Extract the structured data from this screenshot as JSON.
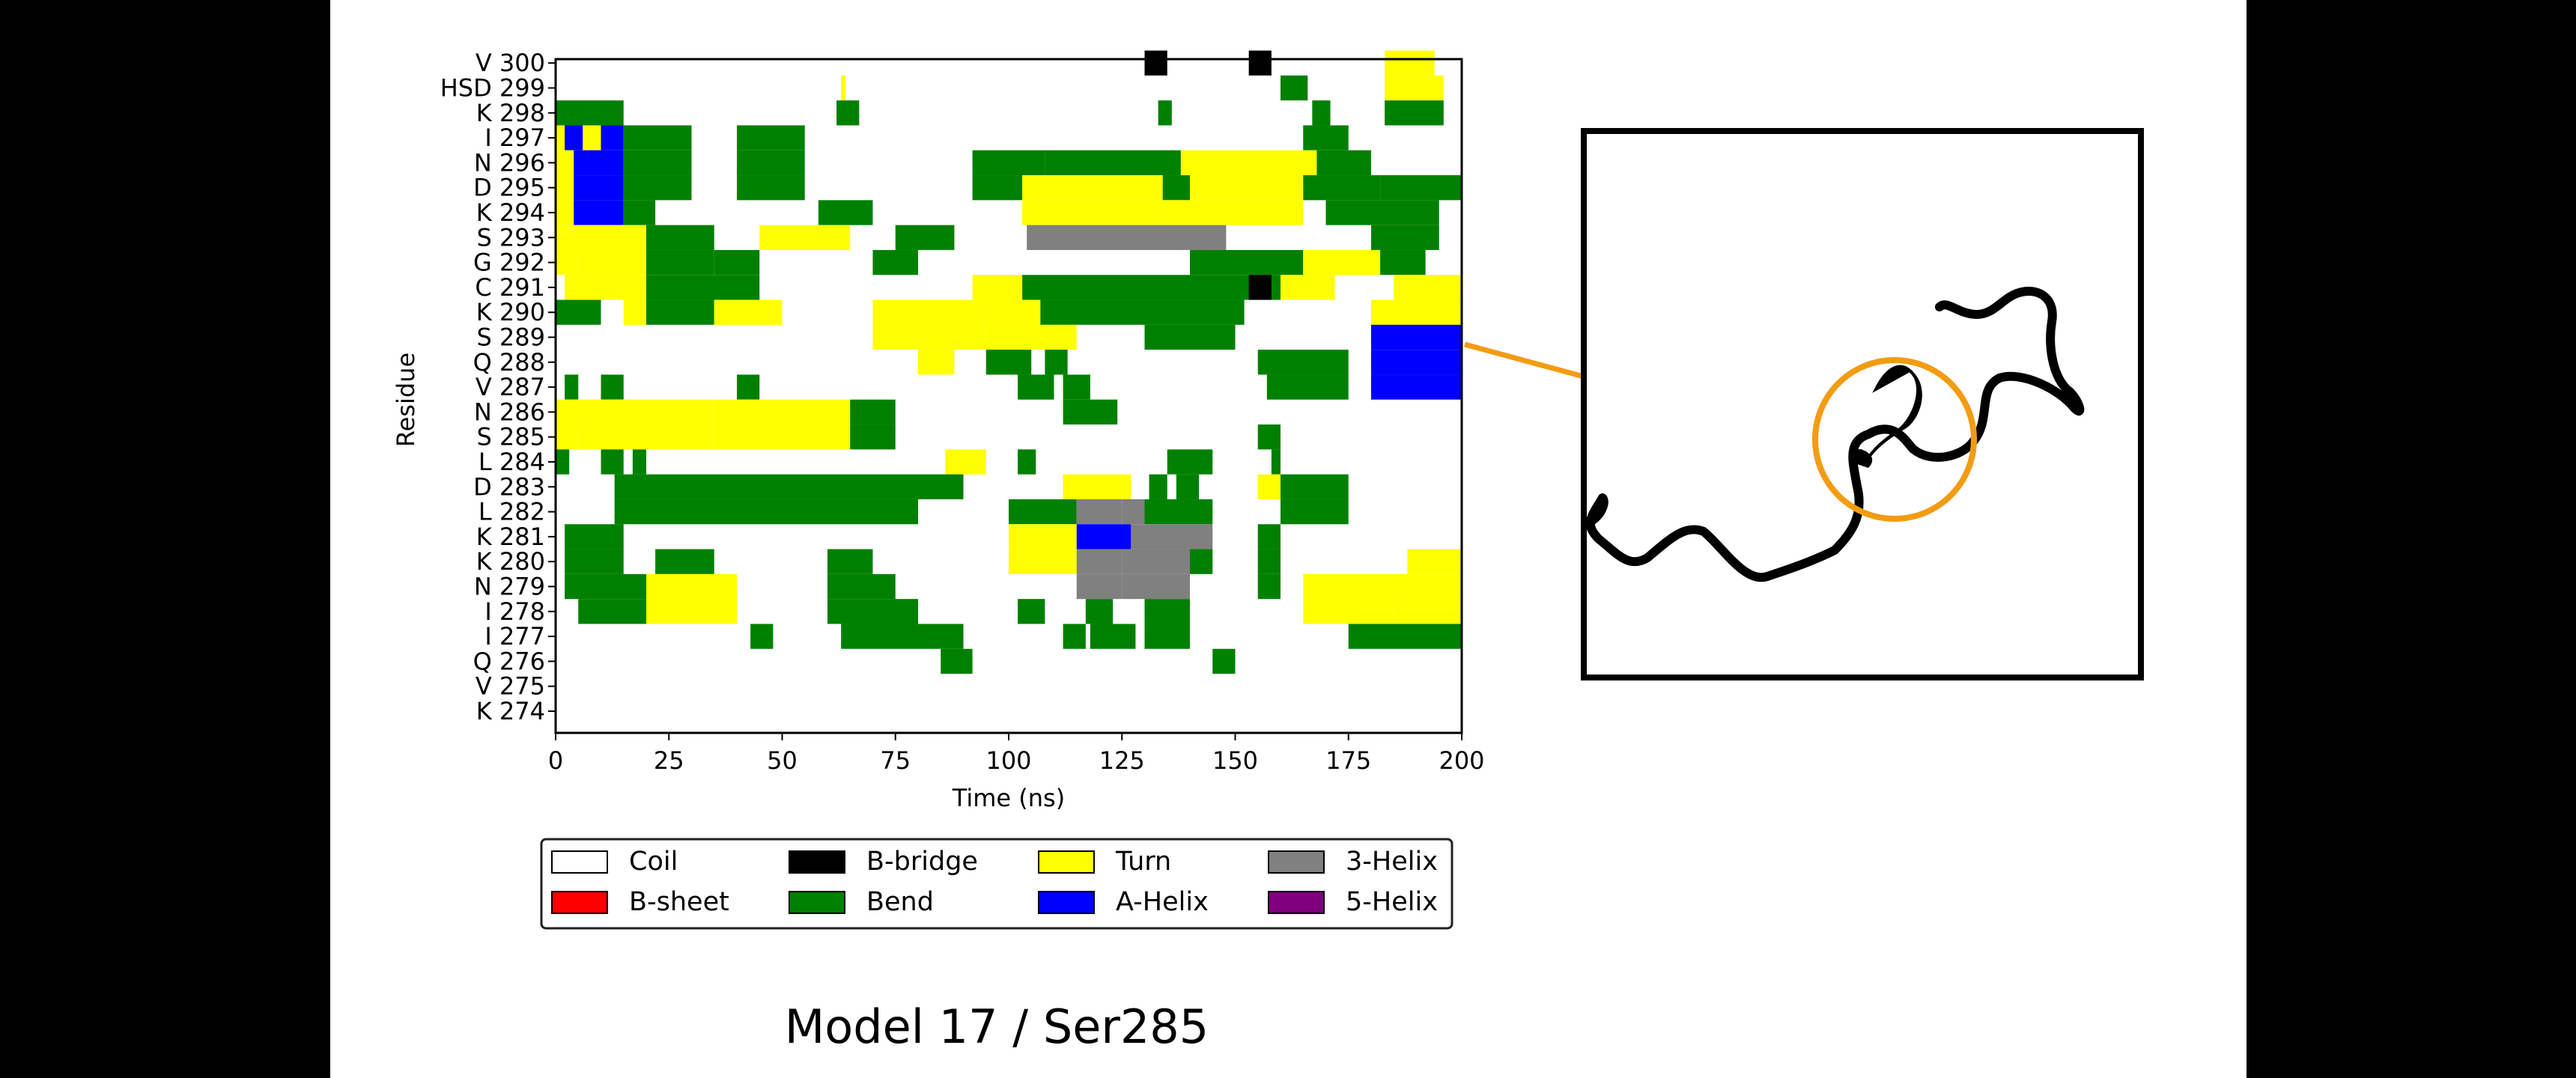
{
  "chart_data": {
    "type": "heatmap",
    "xlabel": "Time (ns)",
    "ylabel": "Residue",
    "xlim": [
      0,
      200
    ],
    "xticks": [
      0,
      25,
      50,
      75,
      100,
      125,
      150,
      175,
      200
    ],
    "residues": [
      "K 274",
      "V 275",
      "Q 276",
      "I 277",
      "I 278",
      "N 279",
      "K 280",
      "K 281",
      "L 282",
      "D 283",
      "L 284",
      "S 285",
      "N 286",
      "V 287",
      "Q 288",
      "S 289",
      "K 290",
      "C 291",
      "G 292",
      "S 293",
      "K 294",
      "D 295",
      "N 296",
      "I 297",
      "K 298",
      "HSD 299",
      "V 300"
    ],
    "states": [
      {
        "name": "Coil",
        "color": "#ffffff"
      },
      {
        "name": "B-sheet",
        "color": "#ff0000"
      },
      {
        "name": "B-bridge",
        "color": "#000000"
      },
      {
        "name": "Bend",
        "color": "#008000"
      },
      {
        "name": "Turn",
        "color": "#ffff00"
      },
      {
        "name": "A-Helix",
        "color": "#0000ff"
      },
      {
        "name": "3-Helix",
        "color": "#808080"
      },
      {
        "name": "5-Helix",
        "color": "#800080"
      }
    ],
    "segments": [
      {
        "residue": "V 300",
        "blocks": [
          [
            130,
            135,
            "B-bridge"
          ],
          [
            153,
            158,
            "B-bridge"
          ],
          [
            183,
            194,
            "Turn"
          ]
        ]
      },
      {
        "residue": "HSD 299",
        "blocks": [
          [
            63,
            64,
            "Turn"
          ],
          [
            160,
            166,
            "Bend"
          ],
          [
            183,
            196,
            "Turn"
          ]
        ]
      },
      {
        "residue": "K 298",
        "blocks": [
          [
            0,
            15,
            "Bend"
          ],
          [
            62,
            67,
            "Bend"
          ],
          [
            133,
            136,
            "Bend"
          ],
          [
            167,
            171,
            "Bend"
          ],
          [
            183,
            196,
            "Bend"
          ]
        ]
      },
      {
        "residue": "I 297",
        "blocks": [
          [
            0,
            2,
            "Turn"
          ],
          [
            2,
            6,
            "A-Helix"
          ],
          [
            6,
            10,
            "Turn"
          ],
          [
            10,
            15,
            "A-Helix"
          ],
          [
            15,
            30,
            "Bend"
          ],
          [
            40,
            55,
            "Bend"
          ],
          [
            165,
            175,
            "Bend"
          ]
        ]
      },
      {
        "residue": "N 296",
        "blocks": [
          [
            0,
            4,
            "Turn"
          ],
          [
            4,
            10,
            "A-Helix"
          ],
          [
            10,
            15,
            "A-Helix"
          ],
          [
            15,
            30,
            "Bend"
          ],
          [
            40,
            55,
            "Bend"
          ],
          [
            92,
            108,
            "Bend"
          ],
          [
            108,
            138,
            "Bend"
          ],
          [
            138,
            168,
            "Turn"
          ],
          [
            168,
            180,
            "Bend"
          ]
        ]
      },
      {
        "residue": "D 295",
        "blocks": [
          [
            0,
            4,
            "Turn"
          ],
          [
            4,
            10,
            "A-Helix"
          ],
          [
            10,
            15,
            "A-Helix"
          ],
          [
            15,
            30,
            "Bend"
          ],
          [
            40,
            55,
            "Bend"
          ],
          [
            92,
            103,
            "Bend"
          ],
          [
            103,
            134,
            "Turn"
          ],
          [
            134,
            140,
            "Bend"
          ],
          [
            140,
            165,
            "Turn"
          ],
          [
            165,
            182,
            "Bend"
          ],
          [
            182,
            200,
            "Bend"
          ]
        ]
      },
      {
        "residue": "K 294",
        "blocks": [
          [
            0,
            4,
            "Turn"
          ],
          [
            4,
            10,
            "A-Helix"
          ],
          [
            10,
            15,
            "A-Helix"
          ],
          [
            15,
            22,
            "Bend"
          ],
          [
            58,
            70,
            "Bend"
          ],
          [
            103,
            134,
            "Turn"
          ],
          [
            134,
            165,
            "Turn"
          ],
          [
            170,
            195,
            "Bend"
          ]
        ]
      },
      {
        "residue": "S 293",
        "blocks": [
          [
            0,
            20,
            "Turn"
          ],
          [
            20,
            35,
            "Bend"
          ],
          [
            45,
            65,
            "Turn"
          ],
          [
            75,
            88,
            "Bend"
          ],
          [
            104,
            120,
            "3-Helix"
          ],
          [
            120,
            148,
            "3-Helix"
          ],
          [
            180,
            195,
            "Bend"
          ]
        ]
      },
      {
        "residue": "G 292",
        "blocks": [
          [
            0,
            5,
            "Turn"
          ],
          [
            5,
            20,
            "Turn"
          ],
          [
            20,
            35,
            "Bend"
          ],
          [
            35,
            45,
            "Bend"
          ],
          [
            70,
            80,
            "Bend"
          ],
          [
            140,
            165,
            "Bend"
          ],
          [
            165,
            182,
            "Turn"
          ],
          [
            182,
            192,
            "Bend"
          ]
        ]
      },
      {
        "residue": "C 291",
        "blocks": [
          [
            2,
            10,
            "Turn"
          ],
          [
            10,
            20,
            "Turn"
          ],
          [
            20,
            45,
            "Bend"
          ],
          [
            92,
            103,
            "Turn"
          ],
          [
            103,
            140,
            "Bend"
          ],
          [
            140,
            160,
            "Bend"
          ],
          [
            153,
            158,
            "B-bridge"
          ],
          [
            160,
            172,
            "Turn"
          ],
          [
            185,
            200,
            "Turn"
          ]
        ]
      },
      {
        "residue": "K 290",
        "blocks": [
          [
            0,
            10,
            "Bend"
          ],
          [
            15,
            20,
            "Turn"
          ],
          [
            20,
            35,
            "Bend"
          ],
          [
            35,
            50,
            "Turn"
          ],
          [
            70,
            95,
            "Turn"
          ],
          [
            95,
            107,
            "Turn"
          ],
          [
            107,
            152,
            "Bend"
          ],
          [
            180,
            200,
            "Turn"
          ]
        ]
      },
      {
        "residue": "S 289",
        "blocks": [
          [
            70,
            80,
            "Turn"
          ],
          [
            80,
            95,
            "Turn"
          ],
          [
            95,
            115,
            "Turn"
          ],
          [
            130,
            150,
            "Bend"
          ],
          [
            180,
            200,
            "A-Helix"
          ]
        ]
      },
      {
        "residue": "Q 288",
        "blocks": [
          [
            80,
            88,
            "Turn"
          ],
          [
            95,
            105,
            "Bend"
          ],
          [
            108,
            113,
            "Bend"
          ],
          [
            155,
            175,
            "Bend"
          ],
          [
            180,
            200,
            "A-Helix"
          ]
        ]
      },
      {
        "residue": "V 287",
        "blocks": [
          [
            2,
            5,
            "Bend"
          ],
          [
            10,
            15,
            "Bend"
          ],
          [
            40,
            45,
            "Bend"
          ],
          [
            102,
            110,
            "Bend"
          ],
          [
            112,
            118,
            "Bend"
          ],
          [
            157,
            175,
            "Bend"
          ],
          [
            180,
            200,
            "A-Helix"
          ]
        ]
      },
      {
        "residue": "N 286",
        "blocks": [
          [
            0,
            10,
            "Turn"
          ],
          [
            10,
            20,
            "Turn"
          ],
          [
            20,
            35,
            "Turn"
          ],
          [
            35,
            65,
            "Turn"
          ],
          [
            65,
            75,
            "Bend"
          ],
          [
            112,
            124,
            "Bend"
          ]
        ]
      },
      {
        "residue": "S 285",
        "blocks": [
          [
            0,
            5,
            "Turn"
          ],
          [
            5,
            20,
            "Turn"
          ],
          [
            20,
            35,
            "Turn"
          ],
          [
            35,
            65,
            "Turn"
          ],
          [
            65,
            75,
            "Bend"
          ],
          [
            155,
            160,
            "Bend"
          ]
        ]
      },
      {
        "residue": "L 284",
        "blocks": [
          [
            0,
            3,
            "Bend"
          ],
          [
            10,
            15,
            "Bend"
          ],
          [
            17,
            20,
            "Bend"
          ],
          [
            86,
            95,
            "Turn"
          ],
          [
            102,
            106,
            "Bend"
          ],
          [
            135,
            145,
            "Bend"
          ],
          [
            158,
            160,
            "Bend"
          ]
        ]
      },
      {
        "residue": "D 283",
        "blocks": [
          [
            13,
            20,
            "Bend"
          ],
          [
            20,
            60,
            "Bend"
          ],
          [
            60,
            90,
            "Bend"
          ],
          [
            112,
            127,
            "Turn"
          ],
          [
            131,
            135,
            "Bend"
          ],
          [
            137,
            142,
            "Bend"
          ],
          [
            155,
            160,
            "Turn"
          ],
          [
            160,
            175,
            "Bend"
          ]
        ]
      },
      {
        "residue": "L 282",
        "blocks": [
          [
            13,
            20,
            "Bend"
          ],
          [
            20,
            60,
            "Bend"
          ],
          [
            60,
            80,
            "Bend"
          ],
          [
            100,
            115,
            "Bend"
          ],
          [
            115,
            125,
            "3-Helix"
          ],
          [
            125,
            130,
            "3-Helix"
          ],
          [
            130,
            145,
            "Bend"
          ],
          [
            160,
            175,
            "Bend"
          ]
        ]
      },
      {
        "residue": "K 281",
        "blocks": [
          [
            2,
            10,
            "Bend"
          ],
          [
            10,
            15,
            "Bend"
          ],
          [
            100,
            115,
            "Turn"
          ],
          [
            115,
            127,
            "A-Helix"
          ],
          [
            127,
            130,
            "3-Helix"
          ],
          [
            130,
            145,
            "3-Helix"
          ],
          [
            155,
            160,
            "Bend"
          ]
        ]
      },
      {
        "residue": "K 280",
        "blocks": [
          [
            2,
            10,
            "Bend"
          ],
          [
            10,
            15,
            "Bend"
          ],
          [
            22,
            35,
            "Bend"
          ],
          [
            60,
            70,
            "Bend"
          ],
          [
            100,
            115,
            "Turn"
          ],
          [
            115,
            125,
            "3-Helix"
          ],
          [
            125,
            140,
            "3-Helix"
          ],
          [
            140,
            145,
            "Bend"
          ],
          [
            155,
            160,
            "Bend"
          ],
          [
            188,
            200,
            "Turn"
          ]
        ]
      },
      {
        "residue": "N 279",
        "blocks": [
          [
            2,
            10,
            "Bend"
          ],
          [
            10,
            20,
            "Bend"
          ],
          [
            20,
            40,
            "Turn"
          ],
          [
            60,
            75,
            "Bend"
          ],
          [
            115,
            125,
            "3-Helix"
          ],
          [
            125,
            140,
            "3-Helix"
          ],
          [
            155,
            160,
            "Bend"
          ],
          [
            165,
            180,
            "Turn"
          ],
          [
            180,
            200,
            "Turn"
          ]
        ]
      },
      {
        "residue": "I 278",
        "blocks": [
          [
            5,
            20,
            "Bend"
          ],
          [
            20,
            40,
            "Turn"
          ],
          [
            60,
            80,
            "Bend"
          ],
          [
            102,
            108,
            "Bend"
          ],
          [
            117,
            123,
            "Bend"
          ],
          [
            130,
            140,
            "Bend"
          ],
          [
            165,
            185,
            "Turn"
          ],
          [
            185,
            200,
            "Turn"
          ]
        ]
      },
      {
        "residue": "I 277",
        "blocks": [
          [
            43,
            48,
            "Bend"
          ],
          [
            63,
            80,
            "Bend"
          ],
          [
            80,
            90,
            "Bend"
          ],
          [
            112,
            117,
            "Bend"
          ],
          [
            118,
            128,
            "Bend"
          ],
          [
            130,
            140,
            "Bend"
          ],
          [
            175,
            200,
            "Bend"
          ]
        ]
      },
      {
        "residue": "Q 276",
        "blocks": [
          [
            85,
            92,
            "Bend"
          ],
          [
            145,
            150,
            "Bend"
          ]
        ]
      },
      {
        "residue": "V 275",
        "blocks": []
      },
      {
        "residue": "K 274",
        "blocks": []
      }
    ],
    "grid": false,
    "legend_position": "bottom"
  },
  "caption": "Model 17 / Ser285",
  "structure_view": {
    "highlight_color": "#f39c12",
    "structure_color": "#000000"
  }
}
